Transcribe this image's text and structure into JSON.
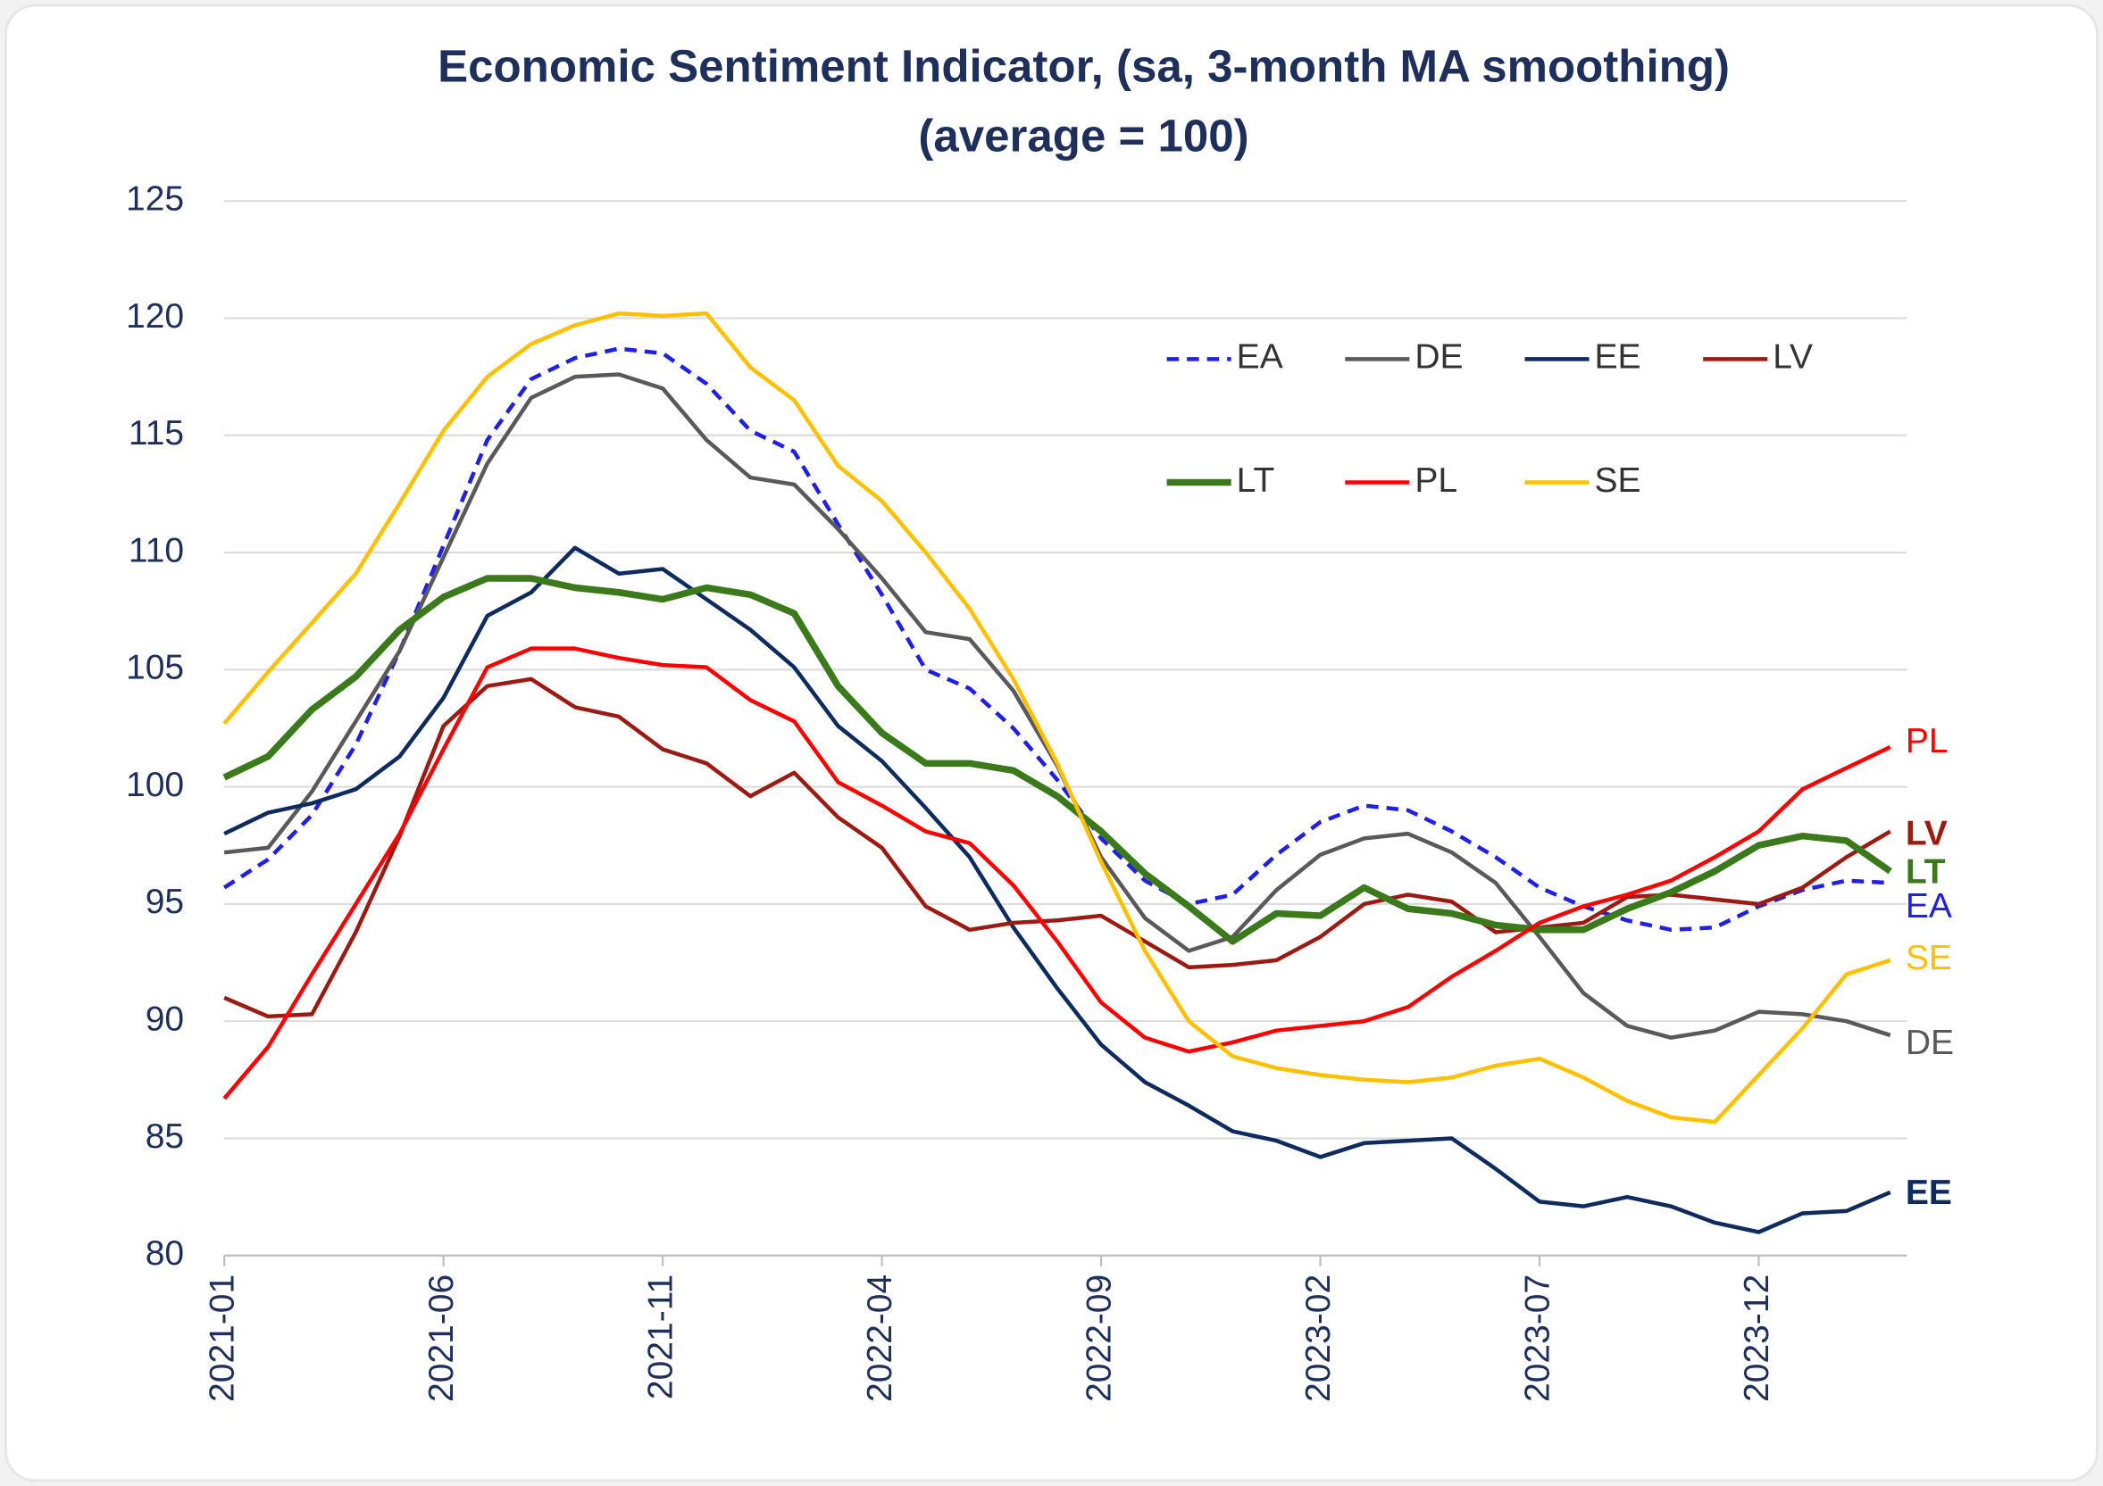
{
  "chart_data": {
    "type": "line",
    "title": "Economic Sentiment Indicator, (sa, 3-month MA smoothing)",
    "subtitle": "(average = 100)",
    "categories": [
      "2021-01",
      null,
      null,
      null,
      null,
      "2021-06",
      null,
      null,
      null,
      null,
      "2021-11",
      null,
      null,
      null,
      null,
      "2022-04",
      null,
      null,
      null,
      null,
      "2022-09",
      null,
      null,
      null,
      null,
      "2023-02",
      null,
      null,
      null,
      null,
      "2023-07",
      null,
      null,
      null,
      null,
      "2023-12",
      null,
      null,
      null
    ],
    "ylim": [
      80,
      125
    ],
    "yticks": [
      80,
      85,
      90,
      95,
      100,
      105,
      110,
      115,
      120,
      125
    ],
    "grid": true,
    "legend": "top-right",
    "series": [
      {
        "name": "EA",
        "color": "#1f1fe6",
        "dashed": true,
        "values": [
          95.7,
          96.9,
          98.8,
          101.8,
          105.8,
          110.3,
          114.8,
          117.4,
          118.3,
          118.7,
          118.5,
          117.2,
          115.2,
          114.3,
          111.2,
          108.2,
          105.0,
          104.2,
          102.5,
          100.3,
          97.8,
          96.0,
          95.0,
          95.4,
          97.1,
          98.5,
          99.2,
          99.0,
          98.1,
          97.0,
          95.7,
          94.9,
          94.3,
          93.9,
          94.0,
          94.9,
          95.6,
          96.0,
          95.9
        ]
      },
      {
        "name": "DE",
        "color": "#595959",
        "values": [
          97.2,
          97.4,
          99.8,
          102.8,
          105.8,
          109.8,
          113.8,
          116.6,
          117.5,
          117.6,
          117.0,
          114.8,
          113.2,
          112.9,
          111.0,
          108.9,
          106.6,
          106.3,
          104.1,
          100.9,
          97.0,
          94.4,
          93.0,
          93.6,
          95.6,
          97.1,
          97.8,
          98.0,
          97.2,
          95.9,
          93.6,
          91.2,
          89.8,
          89.3,
          89.6,
          90.4,
          90.3,
          90.0,
          89.4
        ]
      },
      {
        "name": "EE",
        "color": "#0d2b5e",
        "bold_label": true,
        "values": [
          98.0,
          98.9,
          99.3,
          99.9,
          101.3,
          103.8,
          107.3,
          108.3,
          110.2,
          109.1,
          109.3,
          108.0,
          106.7,
          105.1,
          102.6,
          101.1,
          99.1,
          97.0,
          94.0,
          91.4,
          89.0,
          87.4,
          86.4,
          85.3,
          84.9,
          84.2,
          84.8,
          84.9,
          85.0,
          83.7,
          82.3,
          82.1,
          82.5,
          82.1,
          81.4,
          81.0,
          81.8,
          81.9,
          82.7
        ]
      },
      {
        "name": "LV",
        "color": "#9b1b13",
        "bold_label": true,
        "values": [
          91.0,
          90.2,
          90.3,
          93.8,
          97.9,
          102.6,
          104.3,
          104.6,
          103.4,
          103.0,
          101.6,
          101.0,
          99.6,
          100.6,
          98.7,
          97.4,
          94.9,
          93.9,
          94.2,
          94.3,
          94.5,
          93.4,
          92.3,
          92.4,
          92.6,
          93.6,
          95.0,
          95.4,
          95.1,
          93.8,
          94.0,
          94.2,
          95.3,
          95.4,
          95.2,
          95.0,
          95.7,
          97.0,
          98.1
        ]
      },
      {
        "name": "LT",
        "color": "#3a7a1a",
        "thick": true,
        "bold_label": true,
        "values": [
          100.4,
          101.3,
          103.3,
          104.7,
          106.7,
          108.1,
          108.9,
          108.9,
          108.5,
          108.3,
          108.0,
          108.5,
          108.2,
          107.4,
          104.3,
          102.3,
          101.0,
          101.0,
          100.7,
          99.6,
          98.1,
          96.3,
          94.9,
          93.4,
          94.6,
          94.5,
          95.7,
          94.8,
          94.6,
          94.1,
          93.9,
          93.9,
          94.8,
          95.5,
          96.4,
          97.5,
          97.9,
          97.7,
          96.4
        ]
      },
      {
        "name": "PL",
        "color": "#ff0000",
        "values": [
          86.7,
          88.9,
          92.0,
          95.0,
          98.0,
          101.6,
          105.1,
          105.9,
          105.9,
          105.5,
          105.2,
          105.1,
          103.7,
          102.8,
          100.2,
          99.2,
          98.1,
          97.6,
          95.8,
          93.4,
          90.8,
          89.3,
          88.7,
          89.1,
          89.6,
          89.8,
          90.0,
          90.6,
          91.9,
          93.0,
          94.2,
          94.9,
          95.4,
          96.0,
          97.0,
          98.1,
          99.9,
          100.8,
          101.7
        ]
      },
      {
        "name": "SE",
        "color": "#ffc000",
        "values": [
          102.7,
          104.9,
          107.0,
          109.1,
          112.1,
          115.2,
          117.5,
          118.9,
          119.7,
          120.2,
          120.1,
          120.2,
          117.9,
          116.5,
          113.7,
          112.2,
          110.0,
          107.6,
          104.6,
          101.0,
          96.8,
          93.0,
          90.0,
          88.5,
          88.0,
          87.7,
          87.5,
          87.4,
          87.6,
          88.1,
          88.4,
          87.6,
          86.6,
          85.9,
          85.7,
          87.7,
          89.7,
          92.0,
          92.6
        ]
      }
    ]
  }
}
